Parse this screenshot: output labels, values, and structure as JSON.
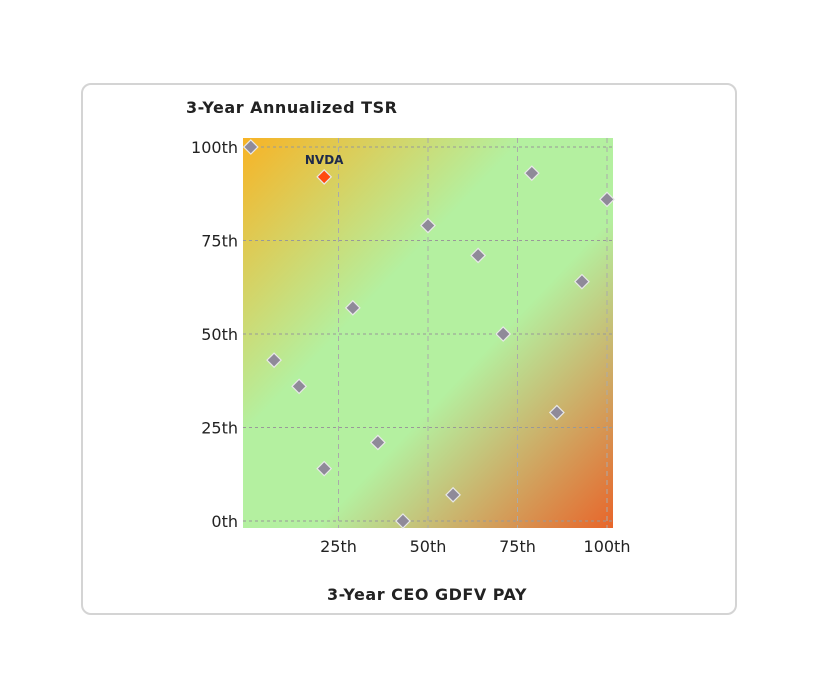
{
  "chart_data": {
    "type": "scatter",
    "ylabel": "3-Year Annualized TSR",
    "xlabel": "3-Year CEO GDFV PAY",
    "xlim": [
      0,
      100
    ],
    "ylim": [
      0,
      100
    ],
    "x_ticks": [
      "25th",
      "50th",
      "75th",
      "100th"
    ],
    "y_ticks": [
      "0th",
      "25th",
      "50th",
      "75th",
      "100th"
    ],
    "x_tick_values": [
      25,
      50,
      75,
      100
    ],
    "y_tick_values": [
      0,
      25,
      50,
      75,
      100
    ],
    "grid": true,
    "background": "diagonal gradient: orange top-left and bottom-right, green band along diagonal",
    "colors": {
      "peer": "#8f8a99",
      "highlight": "#ff4a10",
      "gradient_top_left": "#f8b325",
      "gradient_mid": "#b4f0a0",
      "gradient_bottom_right": "#e8652a"
    },
    "highlight": {
      "label": "NVDA",
      "x": 21,
      "y": 92
    },
    "points": [
      {
        "x": 0.5,
        "y": 100
      },
      {
        "x": 7,
        "y": 43
      },
      {
        "x": 14,
        "y": 36
      },
      {
        "x": 21,
        "y": 14
      },
      {
        "x": 29,
        "y": 57
      },
      {
        "x": 36,
        "y": 21
      },
      {
        "x": 43,
        "y": 0
      },
      {
        "x": 50,
        "y": 79
      },
      {
        "x": 57,
        "y": 7
      },
      {
        "x": 64,
        "y": 71
      },
      {
        "x": 71,
        "y": 50
      },
      {
        "x": 79,
        "y": 93
      },
      {
        "x": 86,
        "y": 29
      },
      {
        "x": 93,
        "y": 64
      },
      {
        "x": 100,
        "y": 86
      }
    ]
  }
}
